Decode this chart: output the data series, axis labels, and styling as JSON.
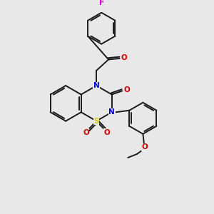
{
  "bg_color": "#e8e8e8",
  "bond_color": "#1a1a1a",
  "N_color": "#0000cc",
  "O_color": "#cc0000",
  "S_color": "#cccc00",
  "F_color": "#cc00cc",
  "lw": 1.4,
  "figsize": [
    3.0,
    3.0
  ],
  "dpi": 100,
  "xlim": [
    0,
    10
  ],
  "ylim": [
    0,
    10
  ]
}
